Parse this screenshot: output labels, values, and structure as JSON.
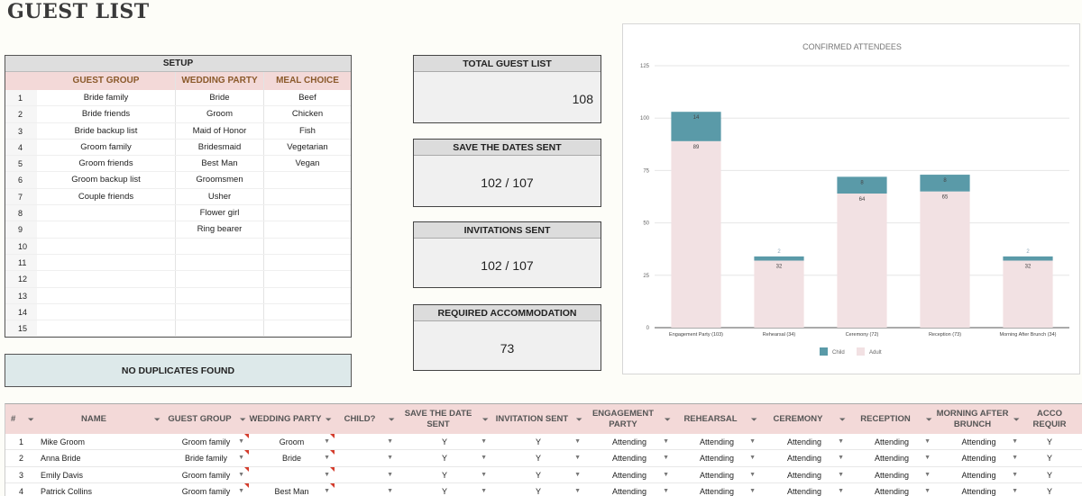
{
  "page": {
    "title": "GUEST LIST"
  },
  "setup": {
    "title": "SETUP",
    "headers": {
      "group": "GUEST GROUP",
      "party": "WEDDING PARTY",
      "meal": "MEAL CHOICE"
    },
    "rows": [
      {
        "n": "1",
        "group": "Bride family",
        "party": "Bride",
        "meal": "Beef"
      },
      {
        "n": "2",
        "group": "Bride friends",
        "party": "Groom",
        "meal": "Chicken"
      },
      {
        "n": "3",
        "group": "Bride backup list",
        "party": "Maid of Honor",
        "meal": "Fish"
      },
      {
        "n": "4",
        "group": "Groom family",
        "party": "Bridesmaid",
        "meal": "Vegetarian"
      },
      {
        "n": "5",
        "group": "Groom friends",
        "party": "Best Man",
        "meal": "Vegan"
      },
      {
        "n": "6",
        "group": "Groom backup list",
        "party": "Groomsmen",
        "meal": ""
      },
      {
        "n": "7",
        "group": "Couple friends",
        "party": "Usher",
        "meal": ""
      },
      {
        "n": "8",
        "group": "",
        "party": "Flower girl",
        "meal": ""
      },
      {
        "n": "9",
        "group": "",
        "party": "Ring bearer",
        "meal": ""
      },
      {
        "n": "10",
        "group": "",
        "party": "",
        "meal": ""
      },
      {
        "n": "11",
        "group": "",
        "party": "",
        "meal": ""
      },
      {
        "n": "12",
        "group": "",
        "party": "",
        "meal": ""
      },
      {
        "n": "13",
        "group": "",
        "party": "",
        "meal": ""
      },
      {
        "n": "14",
        "group": "",
        "party": "",
        "meal": ""
      },
      {
        "n": "15",
        "group": "",
        "party": "",
        "meal": ""
      }
    ]
  },
  "duplicates": {
    "status": "NO DUPLICATES FOUND"
  },
  "stats": {
    "total": {
      "label": "TOTAL GUEST LIST",
      "value": "108"
    },
    "save_dates": {
      "label": "SAVE THE DATES SENT",
      "value": "102 / 107"
    },
    "invitations": {
      "label": "INVITATIONS SENT",
      "value": "102 / 107"
    },
    "accommodation": {
      "label": "REQUIRED ACCOMMODATION",
      "value": "73"
    }
  },
  "chart_data": {
    "type": "bar",
    "stacked": true,
    "title": "CONFIRMED ATTENDEES",
    "categories": [
      "Engagement Party (103)",
      "Rehearsal (34)",
      "Ceremony (72)",
      "Reception (73)",
      "Morning After Brunch (34)"
    ],
    "series": [
      {
        "name": "Adult",
        "values": [
          89,
          32,
          64,
          65,
          32
        ],
        "color": "#f2e1e3"
      },
      {
        "name": "Child",
        "values": [
          14,
          2,
          8,
          8,
          2
        ],
        "color": "#5a9aa8"
      }
    ],
    "yticks": [
      "0",
      "25",
      "50",
      "75",
      "100",
      "125"
    ],
    "ylim": [
      0,
      125
    ],
    "legend": "bottom",
    "grid": true
  },
  "table": {
    "headers": {
      "num": "#",
      "name": "NAME",
      "group": "GUEST GROUP",
      "party": "WEDDING PARTY",
      "child": "CHILD?",
      "sds": "SAVE THE DATE SENT",
      "inv": "INVITATION SENT",
      "eng": "ENGAGEMENT PARTY",
      "reh": "REHEARSAL",
      "cer": "CEREMONY",
      "rec": "RECEPTION",
      "brunch": "MORNING AFTER BRUNCH",
      "acc": "ACCO REQUIR"
    },
    "rows": [
      {
        "n": "1",
        "name": "Mike Groom",
        "group": "Groom family",
        "party": "Groom",
        "child": "",
        "sds": "Y",
        "inv": "Y",
        "eng": "Attending",
        "reh": "Attending",
        "cer": "Attending",
        "rec": "Attending",
        "brunch": "Attending",
        "acc": "Y"
      },
      {
        "n": "2",
        "name": "Anna Bride",
        "group": "Bride family",
        "party": "Bride",
        "child": "",
        "sds": "Y",
        "inv": "Y",
        "eng": "Attending",
        "reh": "Attending",
        "cer": "Attending",
        "rec": "Attending",
        "brunch": "Attending",
        "acc": "Y"
      },
      {
        "n": "3",
        "name": "Emily Davis",
        "group": "Groom family",
        "party": "",
        "child": "",
        "sds": "Y",
        "inv": "Y",
        "eng": "Attending",
        "reh": "Attending",
        "cer": "Attending",
        "rec": "Attending",
        "brunch": "Attending",
        "acc": "Y"
      },
      {
        "n": "4",
        "name": "Patrick Collins",
        "group": "Groom family",
        "party": "Best Man",
        "child": "",
        "sds": "Y",
        "inv": "Y",
        "eng": "Attending",
        "reh": "Attending",
        "cer": "Attending",
        "rec": "Attending",
        "brunch": "Attending",
        "acc": "Y"
      }
    ]
  }
}
